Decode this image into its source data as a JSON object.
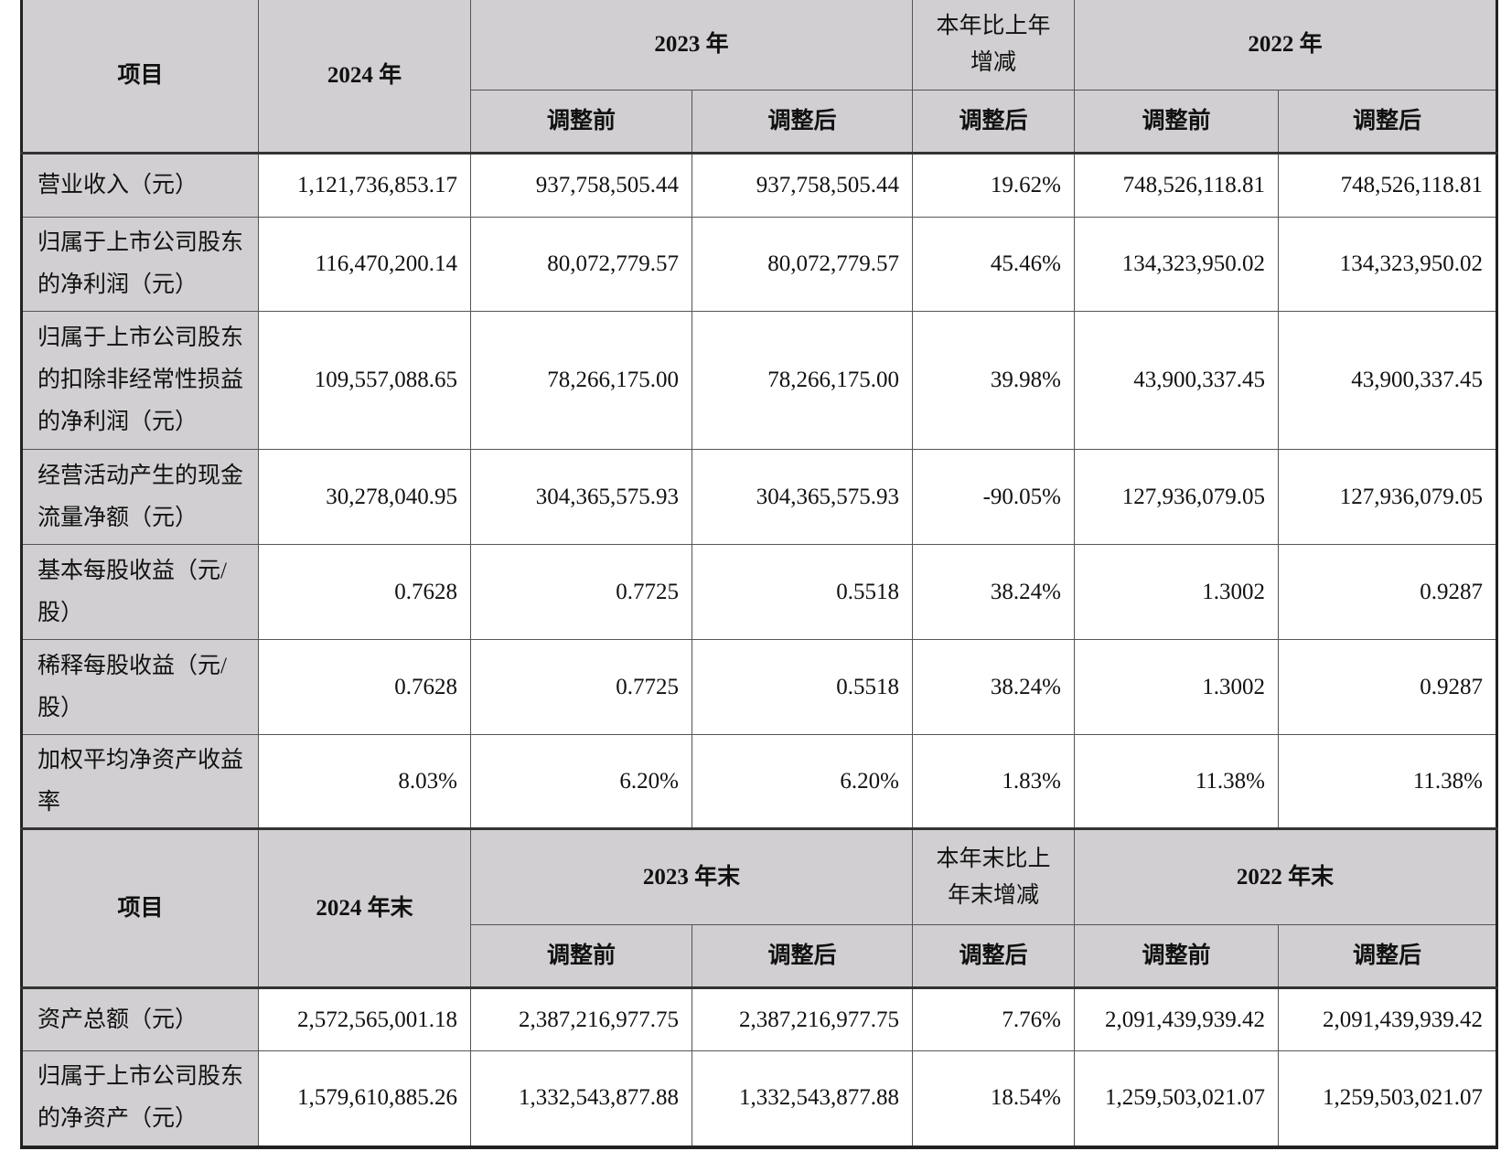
{
  "table1": {
    "header": {
      "item": "项目",
      "y2024": "2024 年",
      "y2023": "2023 年",
      "change": "本年比上年增减",
      "y2022": "2022 年",
      "before": "调整前",
      "after": "调整后"
    },
    "rows": [
      {
        "label": "营业收入（元）",
        "values": [
          "1,121,736,853.17",
          "937,758,505.44",
          "937,758,505.44",
          "19.62%",
          "748,526,118.81",
          "748,526,118.81"
        ]
      },
      {
        "label": "归属于上市公司股东的净利润（元）",
        "values": [
          "116,470,200.14",
          "80,072,779.57",
          "80,072,779.57",
          "45.46%",
          "134,323,950.02",
          "134,323,950.02"
        ]
      },
      {
        "label": "归属于上市公司股东的扣除非经常性损益的净利润（元）",
        "values": [
          "109,557,088.65",
          "78,266,175.00",
          "78,266,175.00",
          "39.98%",
          "43,900,337.45",
          "43,900,337.45"
        ]
      },
      {
        "label": "经营活动产生的现金流量净额（元）",
        "values": [
          "30,278,040.95",
          "304,365,575.93",
          "304,365,575.93",
          "-90.05%",
          "127,936,079.05",
          "127,936,079.05"
        ]
      },
      {
        "label": "基本每股收益（元/股）",
        "values": [
          "0.7628",
          "0.7725",
          "0.5518",
          "38.24%",
          "1.3002",
          "0.9287"
        ]
      },
      {
        "label": "稀释每股收益（元/股）",
        "values": [
          "0.7628",
          "0.7725",
          "0.5518",
          "38.24%",
          "1.3002",
          "0.9287"
        ]
      },
      {
        "label": "加权平均净资产收益率",
        "values": [
          "8.03%",
          "6.20%",
          "6.20%",
          "1.83%",
          "11.38%",
          "11.38%"
        ]
      }
    ]
  },
  "table2": {
    "header": {
      "item": "项目",
      "y2024": "2024 年末",
      "y2023": "2023 年末",
      "change": "本年末比上年末增减",
      "y2022": "2022 年末",
      "before": "调整前",
      "after": "调整后"
    },
    "rows": [
      {
        "label": "资产总额（元）",
        "values": [
          "2,572,565,001.18",
          "2,387,216,977.75",
          "2,387,216,977.75",
          "7.76%",
          "2,091,439,939.42",
          "2,091,439,939.42"
        ]
      },
      {
        "label": "归属于上市公司股东的净资产（元）",
        "values": [
          "1,579,610,885.26",
          "1,332,543,877.88",
          "1,332,543,877.88",
          "18.54%",
          "1,259,503,021.07",
          "1,259,503,021.07"
        ]
      }
    ]
  }
}
